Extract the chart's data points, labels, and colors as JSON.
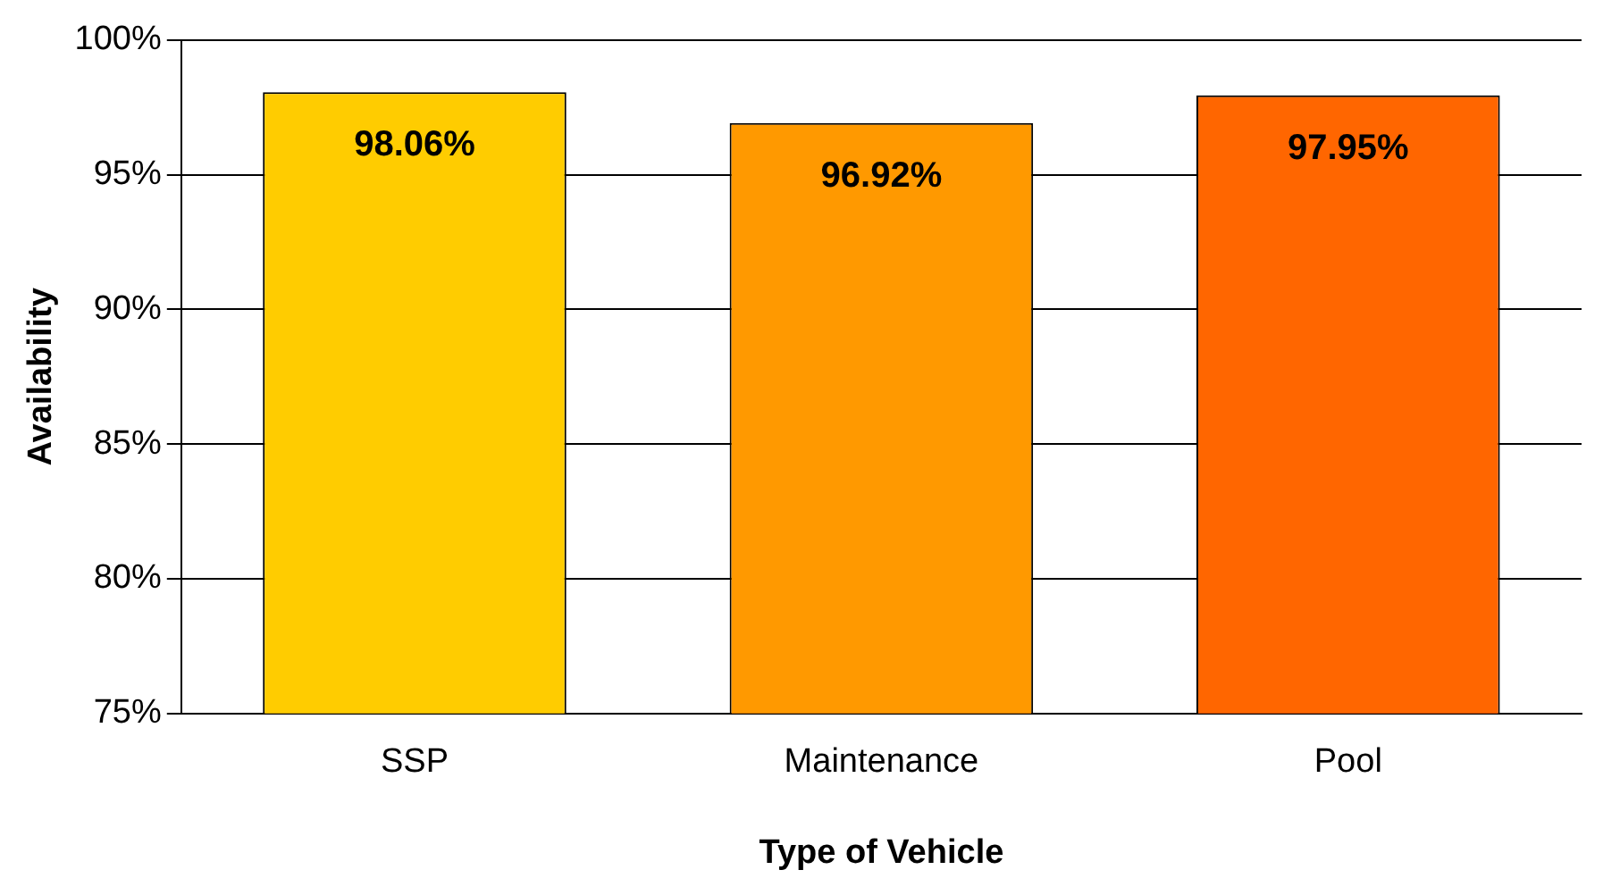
{
  "chart_data": {
    "type": "bar",
    "xlabel": "Type of Vehicle",
    "ylabel": "Availability",
    "categories": [
      "SSP",
      "Maintenance",
      "Pool"
    ],
    "values": [
      98.06,
      96.92,
      97.95
    ],
    "colors": [
      "#ffcc00",
      "#ff9900",
      "#ff6600"
    ],
    "value_labels": [
      "98.06%",
      "96.92%",
      "97.95%"
    ],
    "ylim": [
      75,
      100
    ],
    "yticks": [
      {
        "value": 75,
        "label": "75%"
      },
      {
        "value": 80,
        "label": "80%"
      },
      {
        "value": 85,
        "label": "85%"
      },
      {
        "value": 90,
        "label": "90%"
      },
      {
        "value": 95,
        "label": "95%"
      },
      {
        "value": 100,
        "label": "100%"
      }
    ],
    "grid": "y",
    "legend": false
  }
}
